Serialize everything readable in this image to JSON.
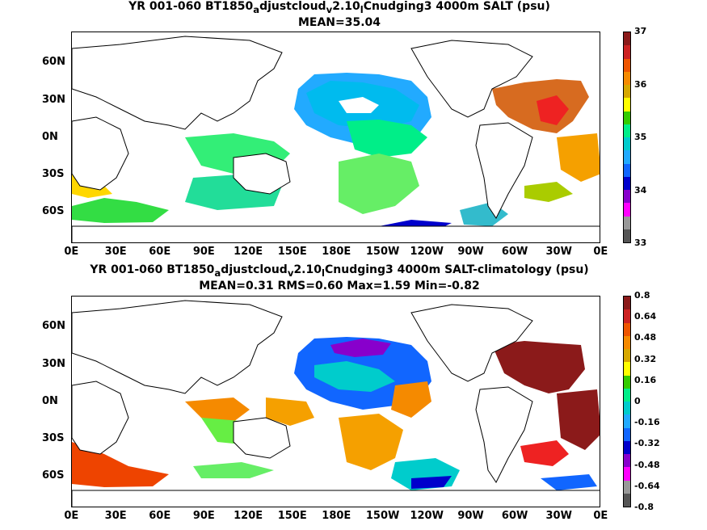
{
  "panels": [
    {
      "title_line1_a": "YR 001-060 BT1850",
      "title_sub_a": "a",
      "title_line1_b": "djustcloud",
      "title_sub_b": "v",
      "title_line1_c": "2.10",
      "title_sub_c": "l",
      "title_line1_d": "Cnudging3 4000m SALT (psu)",
      "title_line2": "MEAN=35.04",
      "colorbar_labels": [
        "37",
        "36",
        "35",
        "34",
        "33"
      ],
      "colorbar_colors": [
        "#8b1a1a",
        "#cc2222",
        "#ee5500",
        "#f58a00",
        "#d7a800",
        "#ffff00",
        "#33cc00",
        "#00ee88",
        "#00cccc",
        "#22aaff",
        "#1166ff",
        "#0000cc",
        "#8800cc",
        "#ff00ff",
        "#999999",
        "#555555"
      ]
    },
    {
      "title_line1_a": "YR 001-060 BT1850",
      "title_sub_a": "a",
      "title_line1_b": "djustcloud",
      "title_sub_b": "v",
      "title_line1_c": "2.10",
      "title_sub_c": "l",
      "title_line1_d": "Cnudging3 4000m SALT-climatology (psu)",
      "title_line2": "MEAN=0.31   RMS=0.60   Max=1.59   Min=-0.82",
      "colorbar_labels": [
        "0.8",
        "0.64",
        "0.48",
        "0.32",
        "0.16",
        "0",
        "-0.16",
        "-0.32",
        "-0.48",
        "-0.64",
        "-0.8"
      ],
      "colorbar_colors": [
        "#8b1a1a",
        "#cc2222",
        "#ee5500",
        "#f58a00",
        "#d7a800",
        "#ffff00",
        "#33cc00",
        "#00ee88",
        "#00cccc",
        "#22aaff",
        "#1166ff",
        "#0000cc",
        "#8800cc",
        "#ff00ff",
        "#999999",
        "#555555"
      ]
    }
  ],
  "lat_labels": [
    "60N",
    "30N",
    "0N",
    "30S",
    "60S"
  ],
  "lon_labels": [
    "0E",
    "30E",
    "60E",
    "90E",
    "120E",
    "150E",
    "180E",
    "150W",
    "120W",
    "90W",
    "60W",
    "30W",
    "0E"
  ]
}
